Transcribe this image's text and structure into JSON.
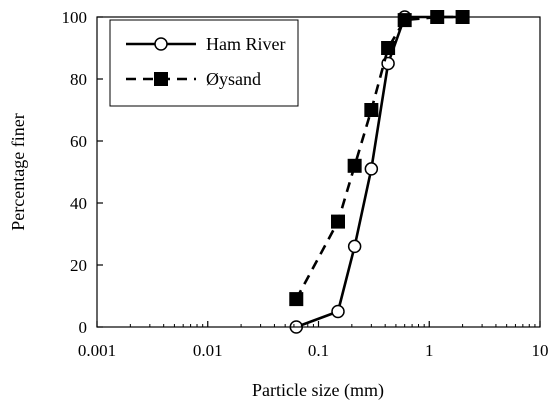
{
  "chart_data": {
    "type": "line",
    "xlabel": "Particle size (mm)",
    "ylabel": "Percentage finer",
    "xscale": "log",
    "xlim": [
      0.001,
      10
    ],
    "ylim": [
      0,
      100
    ],
    "xticks": [
      0.001,
      0.01,
      0.1,
      1,
      10
    ],
    "xtick_labels": [
      "0.001",
      "0.01",
      "0.1",
      "1",
      "10"
    ],
    "yticks": [
      0,
      20,
      40,
      60,
      80,
      100
    ],
    "ytick_labels": [
      "0",
      "20",
      "40",
      "60",
      "80",
      "100"
    ],
    "grid": false,
    "legend_position": "top-left",
    "series": [
      {
        "name": "Ham River",
        "style": "solid",
        "marker": "open-circle",
        "color": "#000000",
        "x": [
          0.063,
          0.15,
          0.212,
          0.3,
          0.425,
          0.6,
          1.18,
          2.0
        ],
        "y": [
          0,
          5,
          26,
          51,
          85,
          100,
          100,
          100
        ]
      },
      {
        "name": "Øysand",
        "style": "dashed",
        "marker": "filled-square",
        "color": "#000000",
        "x": [
          0.063,
          0.15,
          0.212,
          0.3,
          0.425,
          0.6,
          1.18,
          2.0
        ],
        "y": [
          9,
          34,
          52,
          70,
          90,
          99,
          100,
          100
        ]
      }
    ]
  }
}
